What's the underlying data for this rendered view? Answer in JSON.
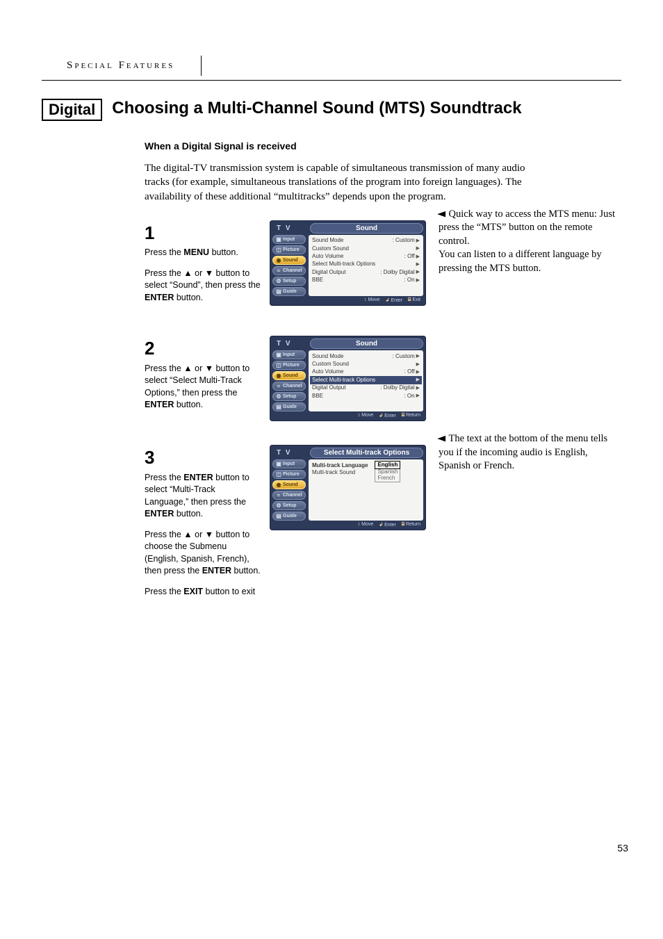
{
  "header": {
    "section": "Special Features"
  },
  "tag": "Digital",
  "title": "Choosing a Multi-Channel Sound (MTS) Soundtrack",
  "subtitle": "When a Digital Signal is received",
  "intro": "The digital-TV transmission system is capable of simultaneous transmission of many audio tracks (for example, simultaneous translations of the program into foreign languages). The availability of these additional “multitracks” depends upon the program.",
  "steps": [
    {
      "num": "1",
      "paras": [
        "Press the <b>MENU</b> button.",
        "Press the ▲ or ▼ button to select “Sound”, then press the <b>ENTER</b> button."
      ],
      "note": "Quick way to access the MTS menu: Just press the “MTS” button on the remote control.\nYou can listen to a different language by pressing the MTS button.",
      "osd": {
        "title": "Sound",
        "active_side": 2,
        "rows": [
          {
            "label": "Sound Mode",
            "val": ": Custom",
            "arrow": true
          },
          {
            "label": "Custom Sound",
            "val": "",
            "arrow": true
          },
          {
            "label": "Auto Volume",
            "val": ": Off",
            "arrow": true
          },
          {
            "label": "Select Multi-track Options",
            "val": "",
            "arrow": true
          },
          {
            "label": "Digital Output",
            "val": ": Dolby Digital",
            "arrow": true
          },
          {
            "label": "BBE",
            "val": ": On",
            "arrow": true
          }
        ],
        "highlight": -1,
        "footer": [
          "Move",
          "Enter",
          "Exit"
        ]
      }
    },
    {
      "num": "2",
      "paras": [
        "Press the ▲ or ▼ button to select “Select Multi-Track Options,” then press the <b>ENTER</b> button."
      ],
      "note": "",
      "osd": {
        "title": "Sound",
        "active_side": 2,
        "rows": [
          {
            "label": "Sound Mode",
            "val": ": Custom",
            "arrow": true
          },
          {
            "label": "Custom Sound",
            "val": "",
            "arrow": true
          },
          {
            "label": "Auto Volume",
            "val": ": Off",
            "arrow": true
          },
          {
            "label": "Select Multi-track Options",
            "val": "",
            "arrow": true
          },
          {
            "label": "Digital Output",
            "val": ": Dolby Digital",
            "arrow": true
          },
          {
            "label": "BBE",
            "val": ": On",
            "arrow": true
          }
        ],
        "highlight": 3,
        "footer": [
          "Move",
          "Enter",
          "Return"
        ]
      }
    },
    {
      "num": "3",
      "paras": [
        "Press the <b>ENTER</b> button to select “Multi-Track Language,” then press the <b>ENTER</b> button.",
        "Press the ▲ or ▼ button to choose the Submenu (English, Spanish, French), then press the <b>ENTER</b> button.",
        "Press the <b>EXIT</b> button to exit"
      ],
      "note": "The text at the bottom of the menu tells you if the incoming audio is English, Spanish or French.",
      "osd": {
        "title": "Select Multi-track Options",
        "active_side": 2,
        "mt": {
          "rows": [
            "Multi-track Language",
            "Multi-track Sound"
          ],
          "langs": [
            "English",
            "Spanish",
            "French"
          ],
          "sel": 0
        },
        "footer": [
          "Move",
          "Enter",
          "Return"
        ]
      }
    }
  ],
  "osd_common": {
    "tv": "T V",
    "sidebar": [
      {
        "icon": "▣",
        "label": "Input"
      },
      {
        "icon": "◫",
        "label": "Picture"
      },
      {
        "icon": "◉",
        "label": "Sound"
      },
      {
        "icon": "≈",
        "label": "Channel"
      },
      {
        "icon": "⚙",
        "label": "Setup"
      },
      {
        "icon": "▤",
        "label": "Guide"
      }
    ],
    "footer_icons": {
      "Move": "↕",
      "Enter": "↲",
      "Exit": "⌸",
      "Return": "⌸"
    }
  },
  "colors": {
    "osd_bg": "#2d3a5a",
    "osd_panel": "#f4f4f2",
    "osd_highlight": "#3a4a70",
    "osd_side_active_top": "#ffd870",
    "osd_side_active_bot": "#e0a830"
  },
  "page_number": "53"
}
